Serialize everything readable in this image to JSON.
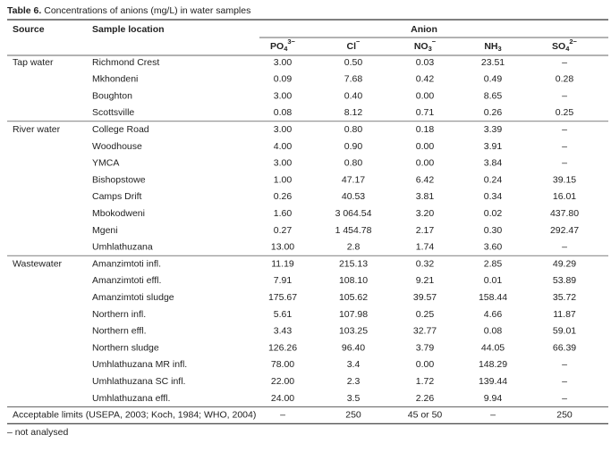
{
  "title": {
    "label": "Table 6.",
    "text": "Concentrations of anions (mg/L) in water samples"
  },
  "table": {
    "headers": {
      "source": "Source",
      "location": "Sample location",
      "anion": "Anion",
      "columns": [
        {
          "base": "PO",
          "sub": "4",
          "sup": "3−"
        },
        {
          "base": "Cl",
          "sup": "−"
        },
        {
          "base": "NO",
          "sub": "3",
          "sup": "−"
        },
        {
          "base": "NH",
          "sub": "3"
        },
        {
          "base": "SO",
          "sub": "4",
          "sup": "2−"
        }
      ]
    },
    "groups": [
      {
        "source": "Tap water",
        "rows": [
          {
            "location": "Richmond Crest",
            "values": [
              "3.00",
              "0.50",
              "0.03",
              "23.51",
              "–"
            ]
          },
          {
            "location": "Mkhondeni",
            "values": [
              "0.09",
              "7.68",
              "0.42",
              "0.49",
              "0.28"
            ]
          },
          {
            "location": "Boughton",
            "values": [
              "3.00",
              "0.40",
              "0.00",
              "8.65",
              "–"
            ]
          },
          {
            "location": "Scottsville",
            "values": [
              "0.08",
              "8.12",
              "0.71",
              "0.26",
              "0.25"
            ]
          }
        ]
      },
      {
        "source": "River water",
        "rows": [
          {
            "location": "College Road",
            "values": [
              "3.00",
              "0.80",
              "0.18",
              "3.39",
              "–"
            ]
          },
          {
            "location": "Woodhouse",
            "values": [
              "4.00",
              "0.90",
              "0.00",
              "3.91",
              "–"
            ]
          },
          {
            "location": "YMCA",
            "values": [
              "3.00",
              "0.80",
              "0.00",
              "3.84",
              "–"
            ]
          },
          {
            "location": "Bishopstowe",
            "values": [
              "1.00",
              "47.17",
              "6.42",
              "0.24",
              "39.15"
            ]
          },
          {
            "location": "Camps Drift",
            "values": [
              "0.26",
              "40.53",
              "3.81",
              "0.34",
              "16.01"
            ]
          },
          {
            "location": "Mbokodweni",
            "values": [
              "1.60",
              "3 064.54",
              "3.20",
              "0.02",
              "437.80"
            ]
          },
          {
            "location": "Mgeni",
            "values": [
              "0.27",
              "1 454.78",
              "2.17",
              "0.30",
              "292.47"
            ]
          },
          {
            "location": "Umhlathuzana",
            "values": [
              "13.00",
              "2.8",
              "1.74",
              "3.60",
              "–"
            ]
          }
        ]
      },
      {
        "source": "Wastewater",
        "rows": [
          {
            "location": "Amanzimtoti infl.",
            "values": [
              "11.19",
              "215.13",
              "0.32",
              "2.85",
              "49.29"
            ]
          },
          {
            "location": "Amanzimtoti effl.",
            "values": [
              "7.91",
              "108.10",
              "9.21",
              "0.01",
              "53.89"
            ]
          },
          {
            "location": "Amanzimtoti sludge",
            "values": [
              "175.67",
              "105.62",
              "39.57",
              "158.44",
              "35.72"
            ]
          },
          {
            "location": "Northern infl.",
            "values": [
              "5.61",
              "107.98",
              "0.25",
              "4.66",
              "11.87"
            ]
          },
          {
            "location": "Northern effl.",
            "values": [
              "3.43",
              "103.25",
              "32.77",
              "0.08",
              "59.01"
            ]
          },
          {
            "location": "Northern sludge",
            "values": [
              "126.26",
              "96.40",
              "3.79",
              "44.05",
              "66.39"
            ]
          },
          {
            "location": "Umhlathuzana MR infl.",
            "values": [
              "78.00",
              "3.4",
              "0.00",
              "148.29",
              "–"
            ]
          },
          {
            "location": "Umhlathuzana SC infl.",
            "values": [
              "22.00",
              "2.3",
              "1.72",
              "139.44",
              "–"
            ]
          },
          {
            "location": "Umhlathuzana effl.",
            "values": [
              "24.00",
              "3.5",
              "2.26",
              "9.94",
              "–"
            ]
          }
        ]
      }
    ],
    "limits": {
      "label": "Acceptable limits (USEPA, 2003; Koch, 1984; WHO, 2004)",
      "values": [
        "–",
        "250",
        "45 or 50",
        "–",
        "250"
      ]
    }
  },
  "footnote": "– not analysed"
}
